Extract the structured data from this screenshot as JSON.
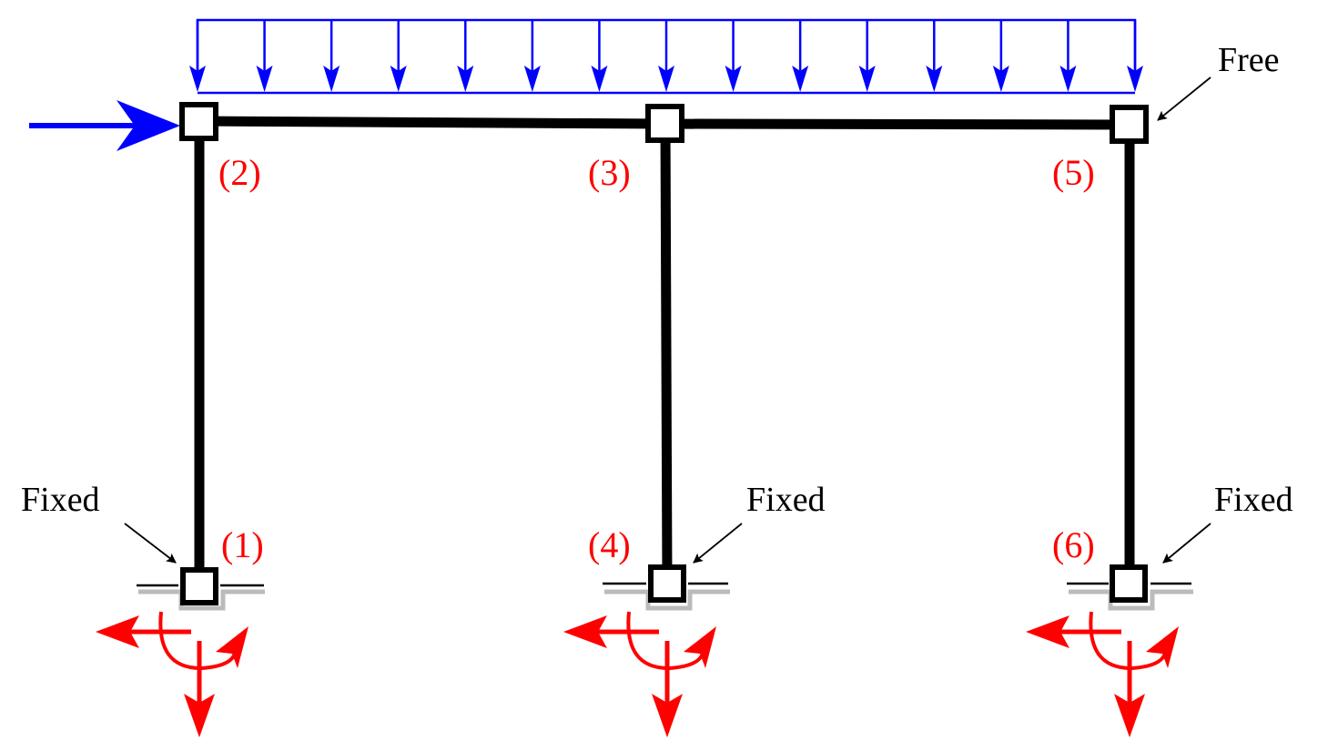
{
  "labels": {
    "free": "Free",
    "fixed": "Fixed"
  },
  "nodes": [
    {
      "id": "1",
      "text": "(1)"
    },
    {
      "id": "2",
      "text": "(2)"
    },
    {
      "id": "3",
      "text": "(3)"
    },
    {
      "id": "4",
      "text": "(4)"
    },
    {
      "id": "5",
      "text": "(5)"
    },
    {
      "id": "6",
      "text": "(6)"
    }
  ],
  "load_arrow_count": 15,
  "colors": {
    "member": "#000000",
    "load": "#0000ff",
    "node_label": "#ff0000",
    "reaction": "#ff0000",
    "ground_shadow": "#bbbbbb"
  }
}
